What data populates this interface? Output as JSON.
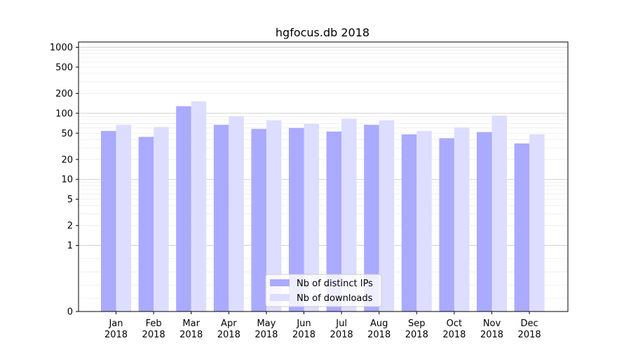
{
  "chart_data": {
    "type": "bar",
    "title": "hgfocus.db 2018",
    "xlabel": "",
    "ylabel": "",
    "yscale": "symlog",
    "ylim": [
      0,
      1200
    ],
    "yticks": [
      0,
      1,
      2,
      5,
      10,
      20,
      50,
      100,
      200,
      500,
      1000
    ],
    "grid": true,
    "legend_position": "lower-center",
    "categories": [
      [
        "Jan",
        "2018"
      ],
      [
        "Feb",
        "2018"
      ],
      [
        "Mar",
        "2018"
      ],
      [
        "Apr",
        "2018"
      ],
      [
        "May",
        "2018"
      ],
      [
        "Jun",
        "2018"
      ],
      [
        "Jul",
        "2018"
      ],
      [
        "Aug",
        "2018"
      ],
      [
        "Sep",
        "2018"
      ],
      [
        "Oct",
        "2018"
      ],
      [
        "Nov",
        "2018"
      ],
      [
        "Dec",
        "2018"
      ]
    ],
    "series": [
      {
        "name": "Nb of distinct IPs",
        "color": "#aaaaff",
        "values": [
          54,
          44,
          128,
          67,
          58,
          60,
          53,
          67,
          48,
          42,
          52,
          35
        ]
      },
      {
        "name": "Nb of downloads",
        "color": "#ddddff",
        "values": [
          67,
          62,
          152,
          90,
          78,
          69,
          83,
          78,
          54,
          61,
          92,
          48
        ]
      }
    ]
  }
}
